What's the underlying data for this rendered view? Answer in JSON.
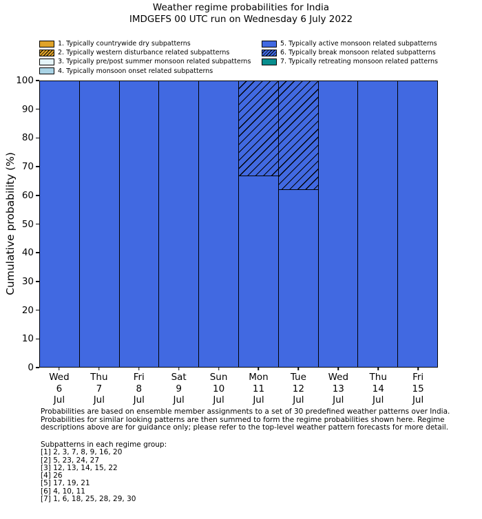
{
  "title": {
    "line1": "Weather regime probabilities for India",
    "line2": "IMDGEFS 00 UTC run on Wednesday 6 July 2022"
  },
  "colors": {
    "bar_fill": "#4169E1",
    "bar_edge": "#000000",
    "background": "#ffffff"
  },
  "legend": {
    "items": [
      {
        "label": "1. Typically countrywide dry subpatterns",
        "color": "#DFA32A",
        "hatch": false,
        "column": 1
      },
      {
        "label": "2. Typically western disturbance related subpatterns",
        "color": "#DFA32A",
        "hatch": true,
        "column": 1
      },
      {
        "label": "3. Typically pre/post summer monsoon related subpatterns",
        "color": "#E4F4F9",
        "hatch": false,
        "column": 1
      },
      {
        "label": "4. Typically monsoon onset related subpatterns",
        "color": "#A9D3E5",
        "hatch": false,
        "column": 1
      },
      {
        "label": "5. Typically active monsoon related subpatterns",
        "color": "#4169E1",
        "hatch": false,
        "column": 2
      },
      {
        "label": "6. Typically break monsoon related subpatterns",
        "color": "#4169E1",
        "hatch": true,
        "column": 2
      },
      {
        "label": "7. Typically retreating monsoon related patterns",
        "color": "#088E8E",
        "hatch": false,
        "column": 2
      }
    ]
  },
  "chart_data": {
    "type": "bar",
    "stacked": true,
    "title": "Weather regime probabilities for India",
    "subtitle": "IMDGEFS 00 UTC run on Wednesday 6 July 2022",
    "xlabel": "",
    "ylabel": "Cumulative probability (%)",
    "ylim": [
      0,
      100
    ],
    "yticks": [
      0,
      10,
      20,
      30,
      40,
      50,
      60,
      70,
      80,
      90,
      100
    ],
    "grid": false,
    "legend_position": "above-plot, two columns, no frame",
    "categories": [
      {
        "day": "Wed",
        "date": "6",
        "month": "Jul"
      },
      {
        "day": "Thu",
        "date": "7",
        "month": "Jul"
      },
      {
        "day": "Fri",
        "date": "8",
        "month": "Jul"
      },
      {
        "day": "Sat",
        "date": "9",
        "month": "Jul"
      },
      {
        "day": "Sun",
        "date": "10",
        "month": "Jul"
      },
      {
        "day": "Mon",
        "date": "11",
        "month": "Jul"
      },
      {
        "day": "Tue",
        "date": "12",
        "month": "Jul"
      },
      {
        "day": "Wed",
        "date": "13",
        "month": "Jul"
      },
      {
        "day": "Thu",
        "date": "14",
        "month": "Jul"
      },
      {
        "day": "Fri",
        "date": "15",
        "month": "Jul"
      }
    ],
    "series": [
      {
        "name": "5. Typically active monsoon related subpatterns",
        "color": "#4169E1",
        "hatch": false,
        "values": [
          100,
          100,
          100,
          100,
          100,
          66.7,
          61.9,
          100,
          100,
          100
        ]
      },
      {
        "name": "6. Typically break monsoon related subpatterns",
        "color": "#4169E1",
        "hatch": true,
        "values": [
          0,
          0,
          0,
          0,
          0,
          33.3,
          38.1,
          0,
          0,
          0
        ]
      }
    ]
  },
  "footer": {
    "lines": [
      "Probabilities are based on ensemble member assignments to a set of 30 predefined weather patterns over India.",
      "Probabilities for similar looking patterns are then summed to form the regime probabilities shown here. Regime",
      "descriptions above are for guidance only; please refer to the top-level weather pattern forecasts for more detail."
    ]
  },
  "subpatterns": {
    "heading": "Subpatterns in each regime group:",
    "groups": [
      "[1] 2, 3, 7, 8, 9, 16, 20",
      "[2] 5, 23, 24, 27",
      "[3] 12, 13, 14, 15, 22",
      "[4] 26",
      "[5] 17, 19, 21",
      "[6] 4, 10, 11",
      "[7] 1, 6, 18, 25, 28, 29, 30"
    ]
  }
}
